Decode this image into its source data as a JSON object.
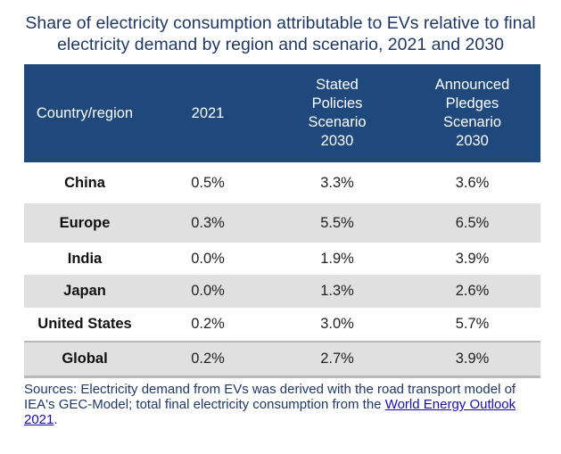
{
  "title": {
    "line1": "Share of electricity consumption attributable to EVs relative to final",
    "line2": "electricity demand by region and scenario, 2021 and 2030"
  },
  "table": {
    "headers": [
      [
        "Country/region"
      ],
      [
        "2021"
      ],
      [
        "Stated",
        "Policies",
        "Scenario",
        "2030"
      ],
      [
        "Announced",
        "Pledges",
        "Scenario",
        "2030"
      ]
    ],
    "rows": [
      {
        "region": "China",
        "y2021": "0.5%",
        "steps2030": "3.3%",
        "aps2030": "3.6%"
      },
      {
        "region": "Europe",
        "y2021": "0.3%",
        "steps2030": "5.5%",
        "aps2030": "6.5%"
      },
      {
        "region": "India",
        "y2021": "0.0%",
        "steps2030": "1.9%",
        "aps2030": "3.9%"
      },
      {
        "region": "Japan",
        "y2021": "0.0%",
        "steps2030": "1.3%",
        "aps2030": "2.6%"
      },
      {
        "region": "United States",
        "y2021": "0.2%",
        "steps2030": "3.0%",
        "aps2030": "5.7%"
      },
      {
        "region": "Global",
        "y2021": "0.2%",
        "steps2030": "2.7%",
        "aps2030": "3.9%"
      }
    ]
  },
  "sources": {
    "text": "Sources: Electricity demand from EVs was derived with the road transport model of IEA's GEC-Model; total final electricity consumption from the ",
    "link": "World Energy Outlook 2021",
    "end": "."
  },
  "colors": {
    "header_bg": "#1f497d",
    "stripe_bg": "#e0e0e0",
    "title": "#1f3864"
  }
}
